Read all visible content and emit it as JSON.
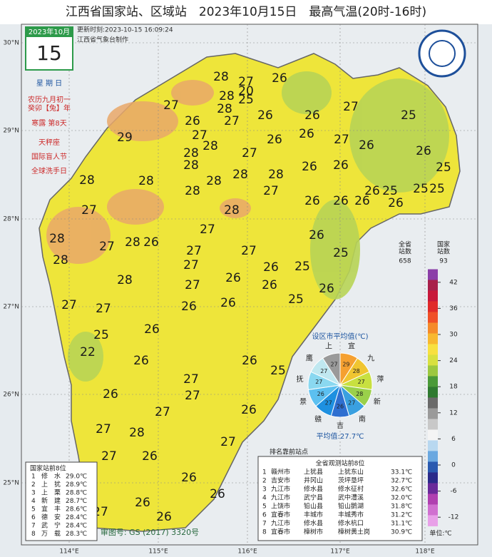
{
  "header": {
    "title": "江西省国家站、区域站　2023年10月15日　最高气温(20时-16时)",
    "update": "更新时刻:2023-10-15 16:09:24",
    "maker": "江西省气象台制作"
  },
  "calendar": {
    "month": "2023年10月",
    "day": "15",
    "lines": [
      "星 期 日",
      "农历九月初一",
      "癸卯【兔】年",
      "寒露 第8天",
      "天秤座",
      "国际盲人节",
      "全球洗手日"
    ]
  },
  "axes": {
    "lat": [
      "30°N",
      "29°N",
      "28°N",
      "27°N",
      "26°N",
      "25°N"
    ],
    "lon": [
      "114°E",
      "115°E",
      "116°E",
      "117°E",
      "118°E"
    ]
  },
  "stations": [
    28,
    27,
    20,
    26,
    25,
    28,
    27,
    28,
    29,
    26,
    27,
    26,
    26,
    27,
    25,
    27,
    28,
    28,
    27,
    26,
    26,
    27,
    26,
    26,
    25,
    28,
    28,
    28,
    28,
    26,
    26,
    26,
    25,
    26,
    25,
    25,
    28,
    28,
    28,
    27,
    26,
    26,
    26,
    28,
    27,
    28,
    28,
    26,
    27,
    27,
    28,
    27,
    27,
    26,
    26,
    25,
    28,
    27,
    27,
    26,
    26,
    25,
    26,
    25,
    27,
    27,
    26,
    26,
    26,
    25,
    22,
    26,
    27,
    26,
    25,
    26,
    27,
    26,
    27,
    27,
    28,
    27,
    27,
    26,
    26,
    26,
    27,
    26,
    26
  ],
  "scale": {
    "count_header": [
      "全省",
      "站数",
      "国家",
      "站数"
    ],
    "counts": [
      "658",
      "93"
    ],
    "ticks": [
      42,
      36,
      30,
      24,
      18,
      12,
      6,
      0,
      -6,
      -12
    ],
    "unit": "单位:℃"
  },
  "pie": {
    "title": "设区市平均值(℃)",
    "names": [
      "宜",
      "九",
      "萍",
      "新",
      "南",
      "吉",
      "赣",
      "景",
      "抚",
      "鹰",
      "上"
    ],
    "values": [
      29,
      28,
      27,
      28,
      27,
      26,
      27,
      26,
      27,
      27,
      27
    ],
    "average": "平均值:27.7℃"
  },
  "ranking_note": "排名靠前站点",
  "national_table": {
    "title": "国家站前8位",
    "rows": [
      [
        "1",
        "修　水",
        "29.0℃"
      ],
      [
        "2",
        "上　犹",
        "28.9℃"
      ],
      [
        "3",
        "上　栗",
        "28.8℃"
      ],
      [
        "4",
        "新　建",
        "28.7℃"
      ],
      [
        "5",
        "宜　丰",
        "28.6℃"
      ],
      [
        "6",
        "德　安",
        "28.4℃"
      ],
      [
        "7",
        "武　宁",
        "28.4℃"
      ],
      [
        "8",
        "万　载",
        "28.3℃"
      ]
    ]
  },
  "province_table": {
    "title": "全省观测站前8位",
    "rows": [
      [
        "1",
        "赣州市",
        "上犹县",
        "上犹东山",
        "33.1℃"
      ],
      [
        "2",
        "吉安市",
        "井冈山",
        "茨坪垦坪",
        "32.7℃"
      ],
      [
        "3",
        "九江市",
        "修水县",
        "修水征村",
        "32.6℃"
      ],
      [
        "4",
        "九江市",
        "武宁县",
        "武中澧溪",
        "32.0℃"
      ],
      [
        "5",
        "上饶市",
        "铅山县",
        "铅山鹅湖",
        "31.8℃"
      ],
      [
        "6",
        "宜春市",
        "丰城市",
        "丰城秀市",
        "31.2℃"
      ],
      [
        "7",
        "九江市",
        "修水县",
        "修水杭口",
        "31.1℃"
      ],
      [
        "8",
        "宜春市",
        "樟树市",
        "樟树黄土岗",
        "30.9℃"
      ]
    ]
  },
  "footer": "审图号: GS (2017) 3320号"
}
